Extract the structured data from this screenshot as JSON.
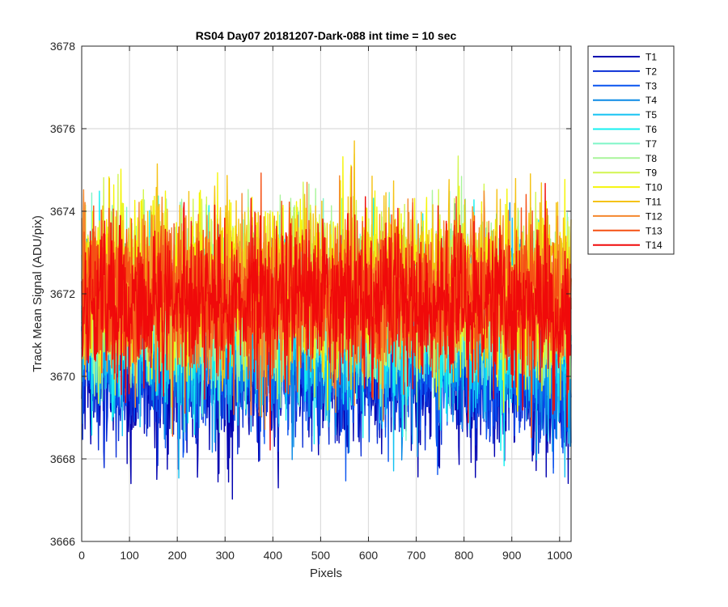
{
  "chart_data": {
    "type": "line",
    "title": "RS04 Day07 20181207-Dark-088 int time = 10 sec",
    "xlabel": "Pixels",
    "ylabel": "Track Mean Signal (ADU/pix)",
    "xlim": [
      0,
      1024
    ],
    "ylim": [
      3666,
      3678
    ],
    "xticks": [
      0,
      100,
      200,
      300,
      400,
      500,
      600,
      700,
      800,
      900,
      1000
    ],
    "yticks": [
      3666,
      3668,
      3670,
      3672,
      3674,
      3676,
      3678
    ],
    "grid": true,
    "legend_position": "outside-top-right",
    "x_points": 1024,
    "series": [
      {
        "name": "T1",
        "color": "#0000b0",
        "mean": 3670.1,
        "amplitude": 1.15
      },
      {
        "name": "T2",
        "color": "#0a2fd6",
        "mean": 3670.3,
        "amplitude": 1.15
      },
      {
        "name": "T3",
        "color": "#0a55f0",
        "mean": 3670.5,
        "amplitude": 1.1
      },
      {
        "name": "T4",
        "color": "#0a8ae6",
        "mean": 3670.9,
        "amplitude": 1.1
      },
      {
        "name": "T5",
        "color": "#14c2f2",
        "mean": 3671.2,
        "amplitude": 1.15
      },
      {
        "name": "T6",
        "color": "#14f0f0",
        "mean": 3671.4,
        "amplitude": 1.2
      },
      {
        "name": "T7",
        "color": "#7ff5c8",
        "mean": 3671.7,
        "amplitude": 1.15
      },
      {
        "name": "T8",
        "color": "#a8f59a",
        "mean": 3671.9,
        "amplitude": 1.15
      },
      {
        "name": "T9",
        "color": "#d2f550",
        "mean": 3672.1,
        "amplitude": 1.2
      },
      {
        "name": "T10",
        "color": "#f5f50a",
        "mean": 3672.2,
        "amplitude": 1.2
      },
      {
        "name": "T11",
        "color": "#f5c214",
        "mean": 3672.2,
        "amplitude": 1.15
      },
      {
        "name": "T12",
        "color": "#f5872d",
        "mean": 3672.0,
        "amplitude": 1.1
      },
      {
        "name": "T13",
        "color": "#f55014",
        "mean": 3671.9,
        "amplitude": 1.1
      },
      {
        "name": "T14",
        "color": "#f00a0a",
        "mean": 3671.8,
        "amplitude": 1.1
      }
    ]
  }
}
